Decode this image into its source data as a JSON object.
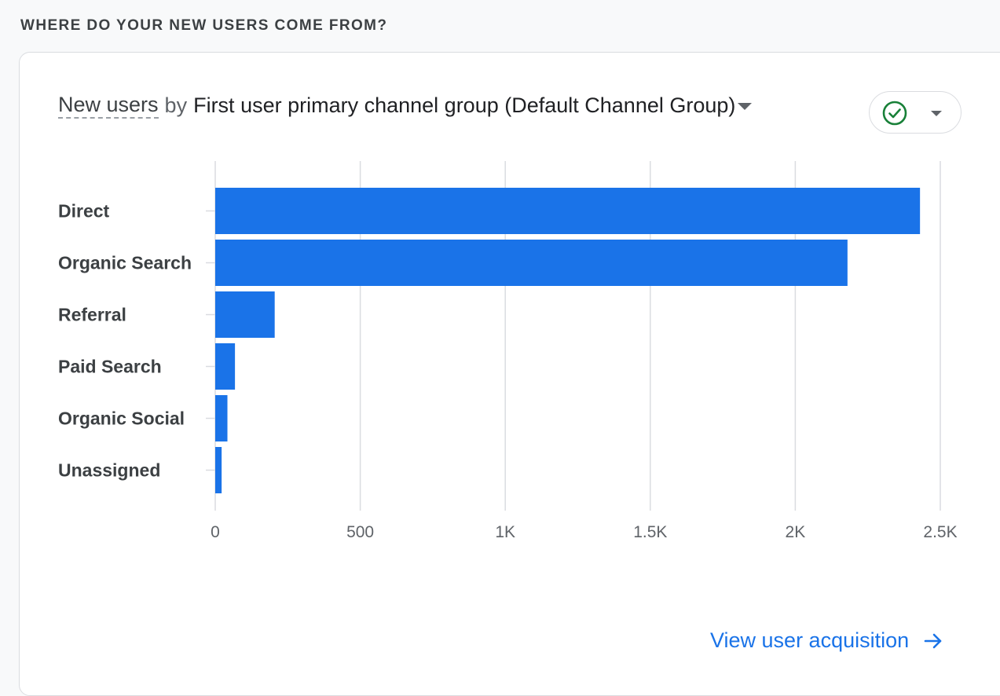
{
  "section": {
    "heading": "WHERE DO YOUR NEW USERS COME FROM?"
  },
  "card": {
    "metric_label": "New users",
    "by_label": "by",
    "dimension_label": "First user primary channel group (Default Channel Group)",
    "status_icon": "check-circle-icon",
    "link_label": "View user acquisition",
    "link_icon": "arrow-right-icon"
  },
  "colors": {
    "bar": "#1a73e8",
    "status_green": "#188038",
    "link": "#1a73e8",
    "grid": "#dadce0"
  },
  "chart_data": {
    "type": "bar",
    "orientation": "horizontal",
    "categories": [
      "Direct",
      "Organic Search",
      "Referral",
      "Paid Search",
      "Organic Social",
      "Unassigned"
    ],
    "values": [
      2430,
      2180,
      205,
      68,
      42,
      22
    ],
    "xlim": [
      0,
      2500
    ],
    "ticks": [
      0,
      500,
      1000,
      1500,
      2000,
      2500
    ],
    "tick_labels": [
      "0",
      "500",
      "1K",
      "1.5K",
      "2K",
      "2.5K"
    ],
    "grid": true
  }
}
